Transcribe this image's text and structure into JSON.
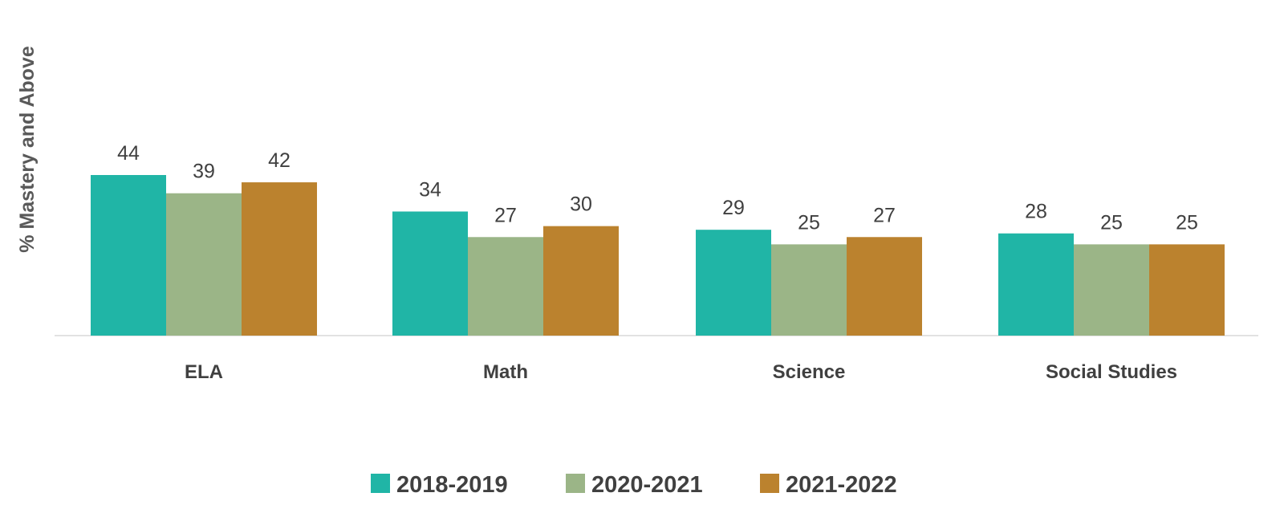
{
  "chart_data": {
    "type": "bar",
    "ylabel": "% Mastery and Above",
    "xlabel": "",
    "categories": [
      "ELA",
      "Math",
      "Science",
      "Social Studies"
    ],
    "series": [
      {
        "name": "2018-2019",
        "color": "#20B5A6",
        "values": [
          44,
          34,
          29,
          28
        ]
      },
      {
        "name": "2020-2021",
        "color": "#9BB587",
        "values": [
          39,
          27,
          25,
          25
        ]
      },
      {
        "name": "2021-2022",
        "color": "#BB822E",
        "values": [
          42,
          30,
          27,
          25
        ]
      }
    ],
    "ylim": [
      0,
      44
    ],
    "grid": false,
    "legend_position": "bottom",
    "data_labels": true
  }
}
